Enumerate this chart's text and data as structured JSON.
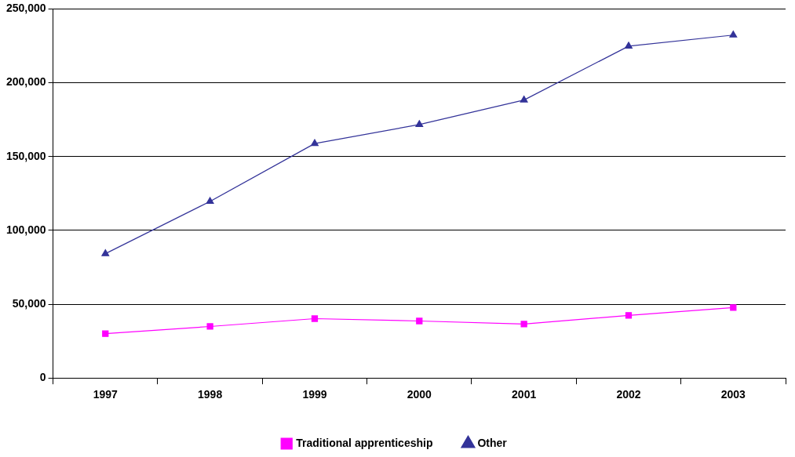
{
  "chart_data": {
    "type": "line",
    "categories": [
      "1997",
      "1998",
      "1999",
      "2000",
      "2001",
      "2002",
      "2003"
    ],
    "series": [
      {
        "name": "Traditional apprenticeship",
        "color": "#ff00ff",
        "marker": "square",
        "values": [
          30000,
          34900,
          40200,
          38600,
          36500,
          42400,
          47700
        ]
      },
      {
        "name": "Other",
        "color": "#333399",
        "marker": "triangle",
        "values": [
          84200,
          119600,
          158800,
          171700,
          188300,
          224800,
          232300
        ]
      }
    ],
    "ylim": [
      0,
      250000
    ],
    "yticks": [
      0,
      {
        "value": 50000,
        "label": "50,000"
      },
      {
        "value": 100000,
        "label": "100,000"
      },
      {
        "value": 150000,
        "label": "150,000"
      },
      {
        "value": 200000,
        "label": "200,000"
      },
      {
        "value": 250000,
        "label": "250,000"
      }
    ],
    "grid": "y",
    "legend": "bottom"
  }
}
